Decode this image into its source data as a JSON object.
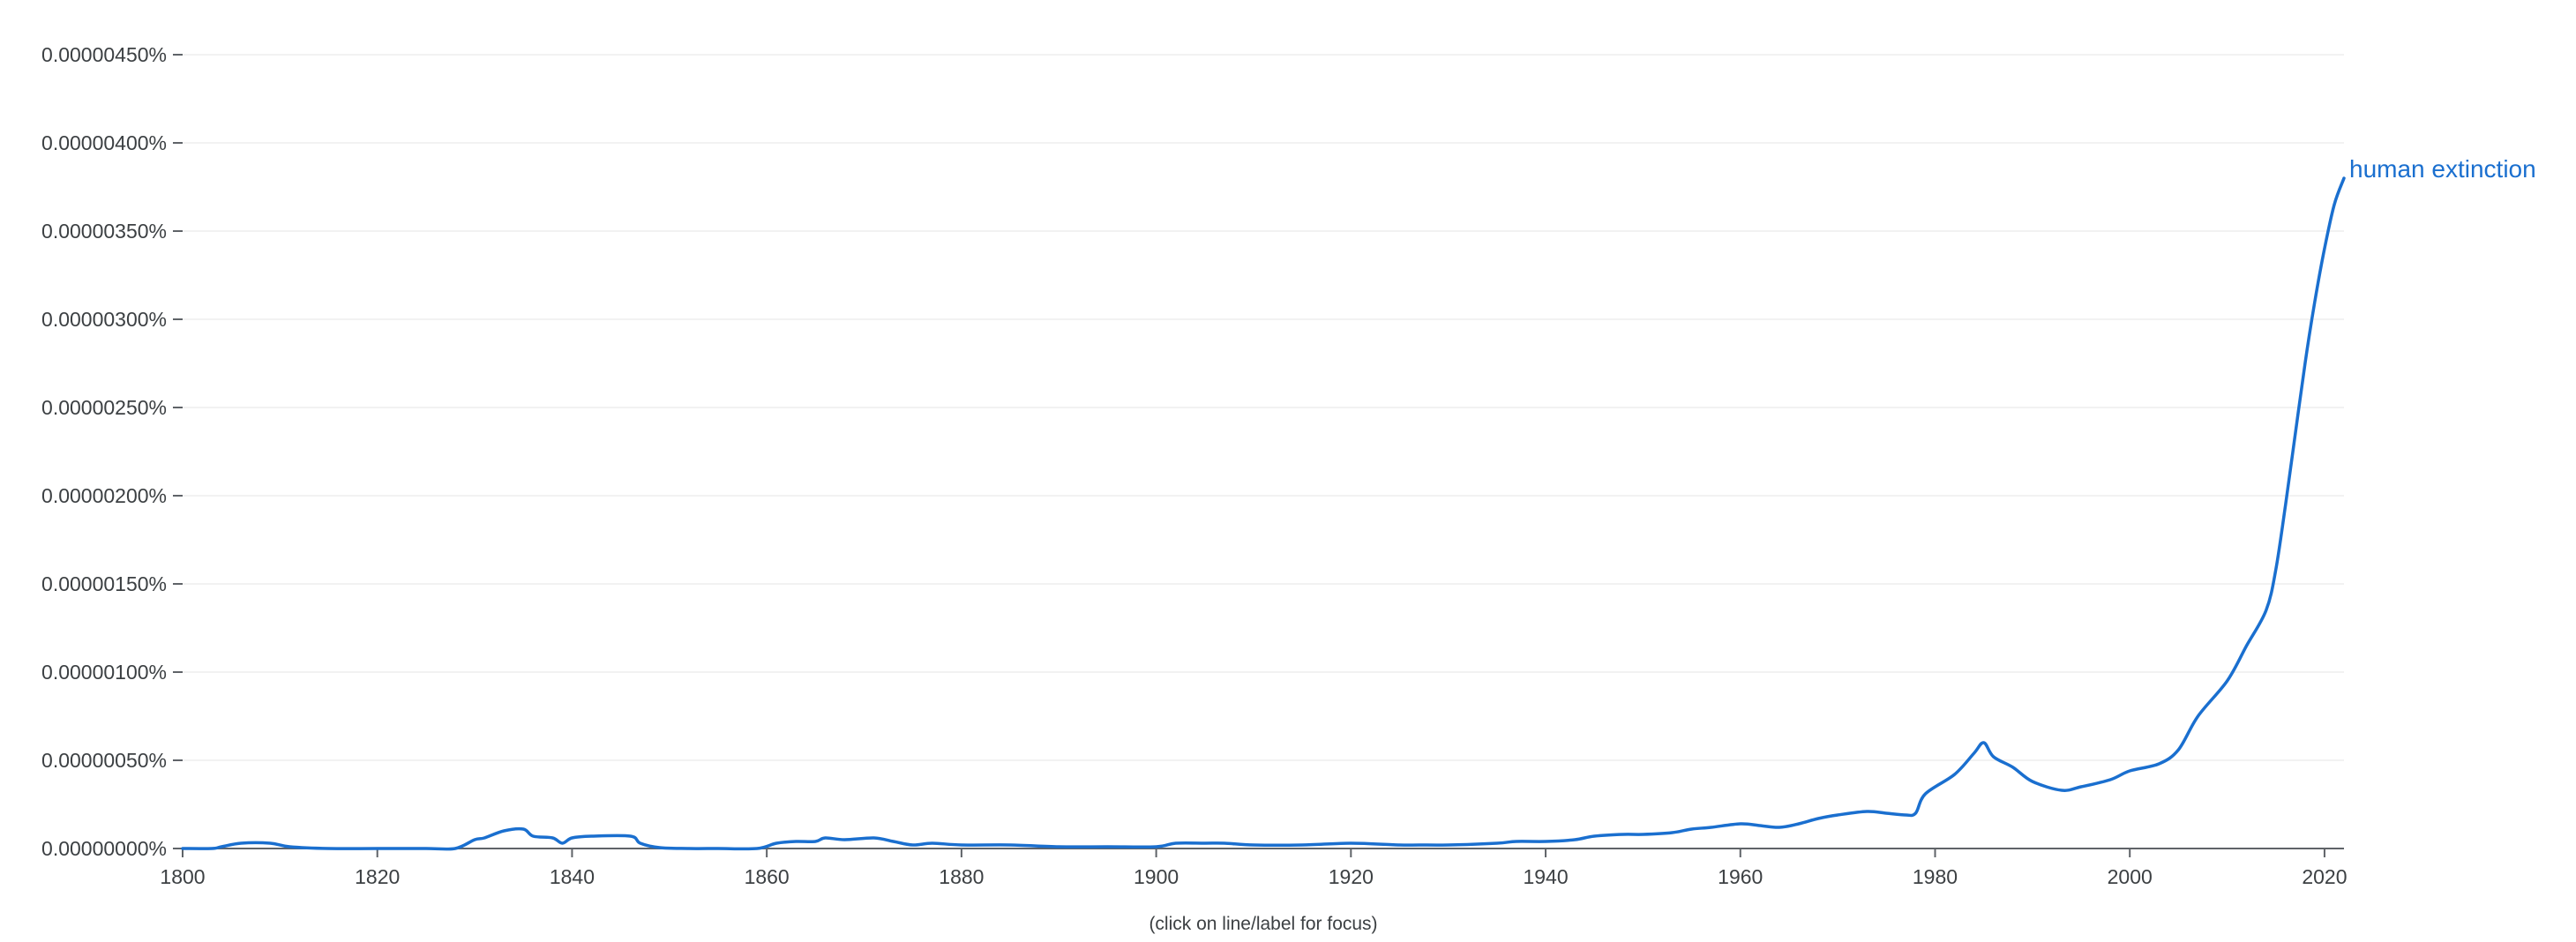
{
  "footer_note": "(click on line/label for focus)",
  "colors": {
    "series": "#1a6fcf"
  },
  "chart_data": {
    "type": "line",
    "title": "",
    "xlabel": "",
    "ylabel": "",
    "xlim": [
      1800,
      2022
    ],
    "ylim": [
      0,
      4.5e-06
    ],
    "grid": true,
    "x_ticks": [
      1800,
      1820,
      1840,
      1860,
      1880,
      1900,
      1920,
      1940,
      1960,
      1980,
      2000,
      2020
    ],
    "y_ticks": [
      0,
      5e-07,
      1e-06,
      1.5e-06,
      2e-06,
      2.5e-06,
      3e-06,
      3.5e-06,
      4e-06,
      4.5e-06
    ],
    "y_tick_labels": [
      "0.00000000%",
      "0.00000050%",
      "0.00000100%",
      "0.00000150%",
      "0.00000200%",
      "0.00000250%",
      "0.00000300%",
      "0.00000350%",
      "0.00000400%",
      "0.00000450%"
    ],
    "series": [
      {
        "name": "human extinction",
        "x": [
          1800,
          1803,
          1804,
          1806,
          1809,
          1811,
          1815,
          1820,
          1825,
          1828,
          1830,
          1831,
          1833,
          1835,
          1836,
          1838,
          1839,
          1840,
          1842,
          1846,
          1847,
          1849,
          1852,
          1855,
          1859,
          1861,
          1863,
          1865,
          1866,
          1868,
          1871,
          1873,
          1875,
          1877,
          1880,
          1885,
          1890,
          1895,
          1900,
          1902,
          1905,
          1907,
          1910,
          1915,
          1920,
          1925,
          1927,
          1930,
          1935,
          1937,
          1940,
          1943,
          1945,
          1948,
          1950,
          1953,
          1955,
          1957,
          1960,
          1962,
          1964,
          1966,
          1968,
          1970,
          1973,
          1975,
          1977,
          1978,
          1979,
          1982,
          1984,
          1985,
          1986,
          1988,
          1990,
          1993,
          1995,
          1998,
          2000,
          2003,
          2005,
          2007,
          2010,
          2012,
          2014,
          2015,
          2016,
          2017,
          2018,
          2019,
          2020,
          2021,
          2022
        ],
        "values": [
          0,
          0,
          1e-08,
          3e-08,
          3e-08,
          1e-08,
          0,
          0,
          0,
          0,
          5e-08,
          6e-08,
          1e-07,
          1.1e-07,
          7e-08,
          6e-08,
          3e-08,
          6e-08,
          7e-08,
          7e-08,
          3e-08,
          5e-09,
          0,
          0,
          0,
          3e-08,
          4e-08,
          4e-08,
          6e-08,
          5e-08,
          6e-08,
          4e-08,
          2e-08,
          3e-08,
          2e-08,
          2e-08,
          1e-08,
          1e-08,
          1e-08,
          3e-08,
          3e-08,
          3e-08,
          2e-08,
          2e-08,
          3e-08,
          2e-08,
          2e-08,
          2e-08,
          3e-08,
          4e-08,
          4e-08,
          5e-08,
          7e-08,
          8e-08,
          8e-08,
          9e-08,
          1.1e-07,
          1.2e-07,
          1.4e-07,
          1.3e-07,
          1.2e-07,
          1.4e-07,
          1.7e-07,
          1.9e-07,
          2.1e-07,
          2e-07,
          1.9e-07,
          2e-07,
          3.1e-07,
          4.2e-07,
          5.4e-07,
          6e-07,
          5.2e-07,
          4.6e-07,
          3.8e-07,
          3.3e-07,
          3.5e-07,
          3.9e-07,
          4.4e-07,
          4.8e-07,
          5.6e-07,
          7.5e-07,
          9.5e-07,
          1.15e-06,
          1.35e-06,
          1.58e-06,
          1.95e-06,
          2.35e-06,
          2.75e-06,
          3.1e-06,
          3.4e-06,
          3.65e-06,
          3.8e-06
        ]
      }
    ]
  }
}
